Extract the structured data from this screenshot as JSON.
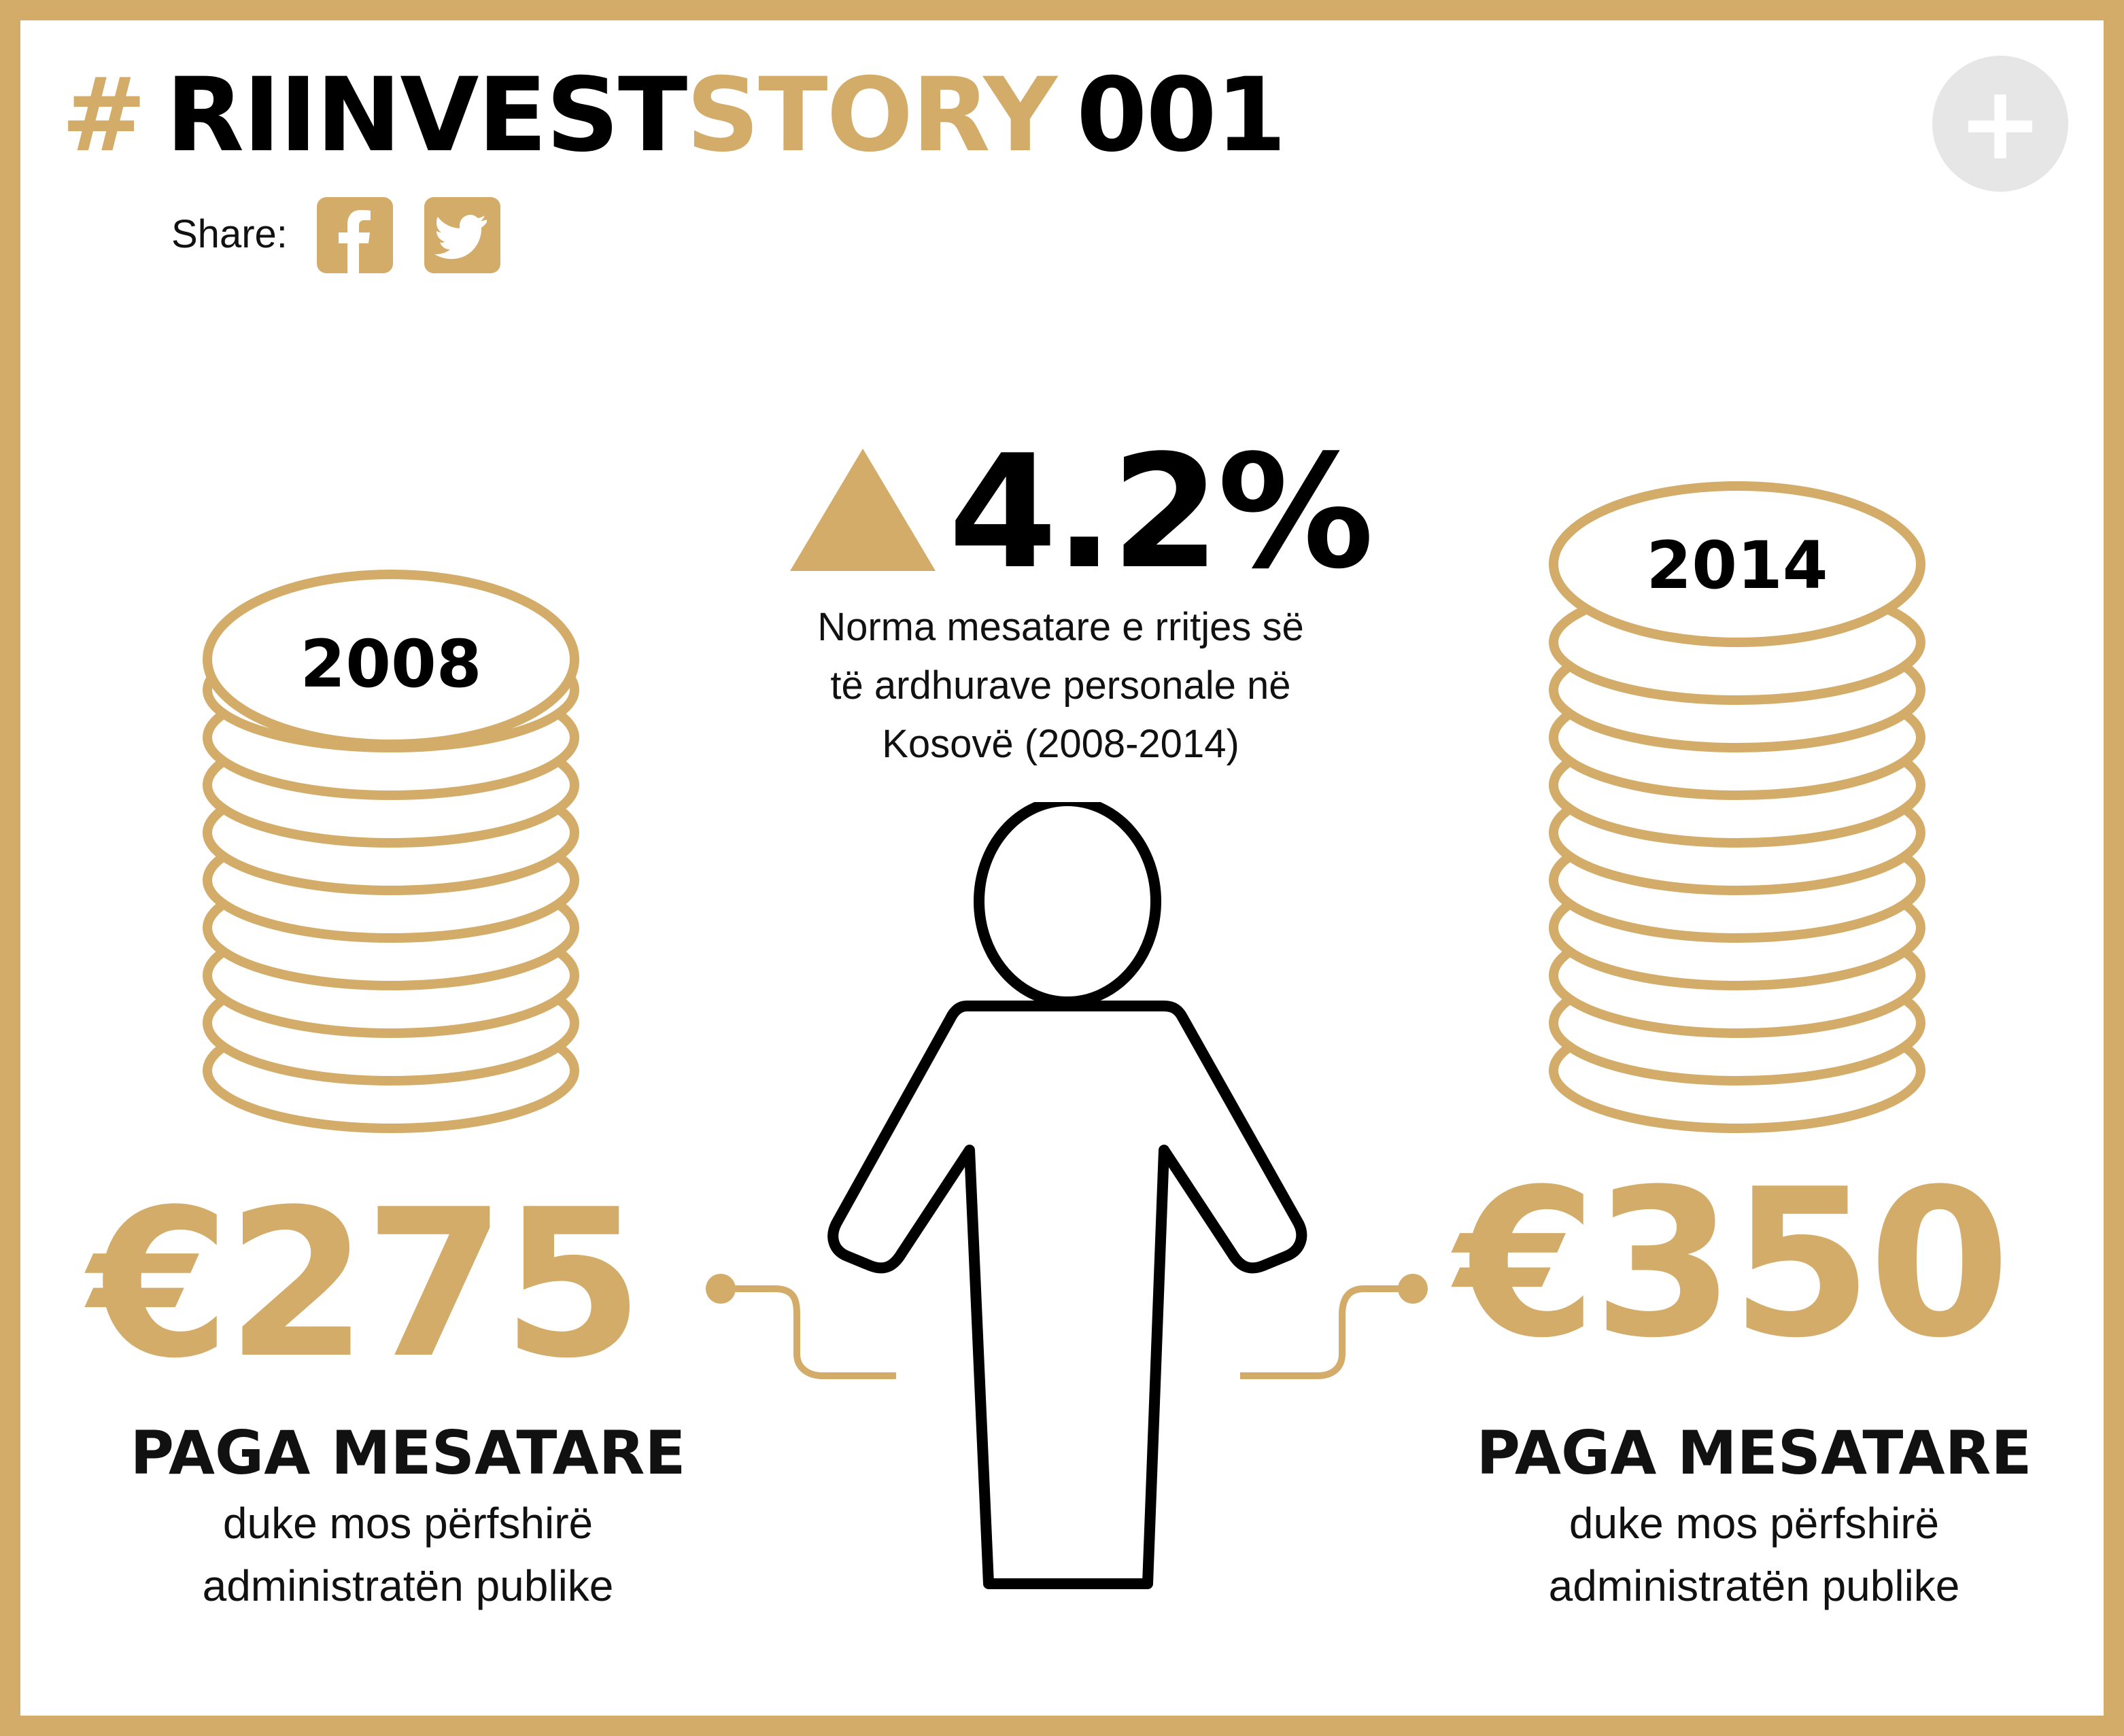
{
  "header": {
    "hash": "#",
    "brand_part1": "RIINVEST",
    "brand_part2": "STORY",
    "number": "001",
    "plus_label": "+",
    "share_label": "Share:"
  },
  "social": {
    "facebook_icon": "facebook-icon",
    "twitter_icon": "twitter-icon"
  },
  "growth": {
    "percent": "4.2%",
    "description_line1": "Norma mesatare e rritjes së",
    "description_line2": "të ardhurave personale në",
    "description_line3": "Kosovë (2008-2014)"
  },
  "left": {
    "year": "2008",
    "amount": "€275",
    "label": "PAGA MESATARE",
    "sub_line1": "duke mos përfshirë",
    "sub_line2": "administratën publike"
  },
  "right": {
    "year": "2014",
    "amount": "€350",
    "label": "PAGA MESATARE",
    "sub_line1": "duke mos përfshirë",
    "sub_line2": "administratën publike"
  },
  "colors": {
    "gold": "#D2AC68",
    "dark": "#000000",
    "button_gray": "#e6e6e6"
  }
}
